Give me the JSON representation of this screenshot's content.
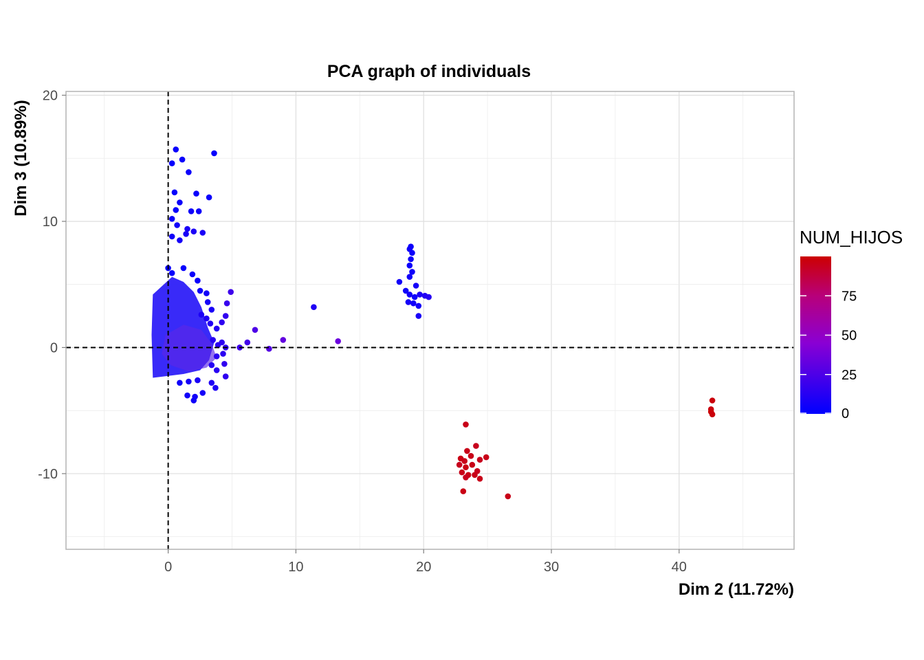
{
  "chart_data": {
    "type": "scatter",
    "title": "PCA graph of individuals",
    "xlabel": "Dim 2 (11.72%)",
    "ylabel": "Dim 3 (10.89%)",
    "xlim": [
      -8,
      49
    ],
    "ylim": [
      -16,
      20.3
    ],
    "x_ticks": [
      0,
      10,
      20,
      30,
      40
    ],
    "y_ticks": [
      -10,
      0,
      10,
      20
    ],
    "x_ticks_label": [
      "0",
      "10",
      "20",
      "30",
      "40"
    ],
    "y_ticks_label": [
      "-10",
      "0",
      "10",
      "20"
    ],
    "grid": true,
    "reference_lines": {
      "x": 0,
      "y": 0,
      "style": "dashed"
    },
    "color_variable": "NUM_HIJOS",
    "color_scale": {
      "low": "#0000ff",
      "mid": "#aa00cc",
      "high": "#cc0000",
      "min": 0,
      "max": 100
    },
    "legend": {
      "title": "NUM_HIJOS",
      "position": "right",
      "ticks": [
        0,
        25,
        50,
        75
      ],
      "tick_labels": [
        "0",
        "25",
        "50",
        "75"
      ]
    },
    "points": [
      [
        3.6,
        15.4,
        2
      ],
      [
        0.6,
        15.7,
        3
      ],
      [
        1.1,
        14.9,
        3
      ],
      [
        1.6,
        13.9,
        4
      ],
      [
        2.2,
        12.2,
        3
      ],
      [
        3.2,
        11.9,
        4
      ],
      [
        0.3,
        14.6,
        2
      ],
      [
        0.5,
        12.3,
        2
      ],
      [
        0.9,
        11.5,
        4
      ],
      [
        0.6,
        10.9,
        3
      ],
      [
        1.8,
        10.8,
        5
      ],
      [
        2.4,
        10.8,
        5
      ],
      [
        0.3,
        10.2,
        4
      ],
      [
        0.7,
        9.7,
        6
      ],
      [
        1.5,
        9.4,
        8
      ],
      [
        2.0,
        9.2,
        9
      ],
      [
        2.7,
        9.1,
        8
      ],
      [
        0.3,
        8.8,
        6
      ],
      [
        0.9,
        8.5,
        7
      ],
      [
        1.4,
        9.0,
        8
      ],
      [
        0.0,
        6.3,
        3
      ],
      [
        0.3,
        5.9,
        3
      ],
      [
        1.2,
        6.3,
        2
      ],
      [
        1.9,
        5.8,
        4
      ],
      [
        2.3,
        5.3,
        3
      ],
      [
        2.5,
        4.5,
        5
      ],
      [
        3.0,
        4.3,
        6
      ],
      [
        3.1,
        3.6,
        7
      ],
      [
        3.4,
        3.0,
        8
      ],
      [
        2.6,
        2.6,
        9
      ],
      [
        3.0,
        2.3,
        10
      ],
      [
        3.3,
        1.9,
        11
      ],
      [
        3.8,
        1.5,
        12
      ],
      [
        3.5,
        0.6,
        13
      ],
      [
        3.9,
        0.2,
        14
      ],
      [
        4.2,
        0.4,
        14
      ],
      [
        4.5,
        0.0,
        15
      ],
      [
        4.9,
        4.4,
        20
      ],
      [
        4.6,
        3.5,
        18
      ],
      [
        4.5,
        2.5,
        16
      ],
      [
        4.2,
        2.0,
        15
      ],
      [
        3.8,
        -0.7,
        14
      ],
      [
        4.3,
        -0.5,
        14
      ],
      [
        3.4,
        -1.4,
        12
      ],
      [
        3.8,
        -1.8,
        13
      ],
      [
        4.4,
        -1.3,
        16
      ],
      [
        4.5,
        -2.3,
        15
      ],
      [
        3.4,
        -2.8,
        10
      ],
      [
        3.7,
        -3.2,
        9
      ],
      [
        2.7,
        -3.6,
        7
      ],
      [
        2.1,
        -3.9,
        6
      ],
      [
        2.0,
        -4.2,
        5
      ],
      [
        1.5,
        -3.8,
        6
      ],
      [
        2.3,
        -2.6,
        8
      ],
      [
        1.6,
        -2.7,
        7
      ],
      [
        0.9,
        -2.8,
        5
      ],
      [
        5.6,
        0.0,
        20
      ],
      [
        6.2,
        0.4,
        22
      ],
      [
        6.8,
        1.4,
        25
      ],
      [
        7.9,
        -0.1,
        27
      ],
      [
        9.0,
        0.6,
        32
      ],
      [
        11.4,
        3.2,
        10
      ],
      [
        13.3,
        0.5,
        35
      ],
      [
        19.0,
        8.0,
        4
      ],
      [
        18.9,
        7.8,
        5
      ],
      [
        19.1,
        7.5,
        4
      ],
      [
        19.0,
        7.0,
        5
      ],
      [
        18.9,
        6.5,
        4
      ],
      [
        19.1,
        6.0,
        5
      ],
      [
        18.9,
        5.6,
        6
      ],
      [
        18.1,
        5.2,
        6
      ],
      [
        19.4,
        4.9,
        7
      ],
      [
        18.6,
        4.5,
        5
      ],
      [
        18.9,
        4.2,
        6
      ],
      [
        19.3,
        4.0,
        5
      ],
      [
        19.7,
        4.2,
        9
      ],
      [
        20.1,
        4.1,
        11
      ],
      [
        20.4,
        4.0,
        12
      ],
      [
        18.8,
        3.6,
        7
      ],
      [
        19.2,
        3.5,
        6
      ],
      [
        19.6,
        3.3,
        7
      ],
      [
        19.6,
        2.5,
        8
      ],
      [
        23.3,
        -6.1,
        95
      ],
      [
        23.4,
        -8.2,
        95
      ],
      [
        24.1,
        -7.8,
        94
      ],
      [
        22.9,
        -8.8,
        96
      ],
      [
        23.2,
        -9.0,
        95
      ],
      [
        23.7,
        -8.6,
        95
      ],
      [
        24.4,
        -8.9,
        94
      ],
      [
        24.9,
        -8.7,
        95
      ],
      [
        22.8,
        -9.3,
        94
      ],
      [
        23.3,
        -9.5,
        96
      ],
      [
        23.8,
        -9.3,
        95
      ],
      [
        24.2,
        -9.8,
        94
      ],
      [
        23.0,
        -9.9,
        95
      ],
      [
        23.5,
        -10.1,
        96
      ],
      [
        24.0,
        -10.1,
        95
      ],
      [
        23.3,
        -10.3,
        94
      ],
      [
        24.4,
        -10.4,
        95
      ],
      [
        23.1,
        -11.4,
        96
      ],
      [
        26.6,
        -11.8,
        95
      ],
      [
        42.6,
        -4.2,
        98
      ],
      [
        42.5,
        -4.9,
        97
      ],
      [
        42.5,
        -5.1,
        99
      ],
      [
        42.6,
        -5.3,
        98
      ]
    ]
  }
}
